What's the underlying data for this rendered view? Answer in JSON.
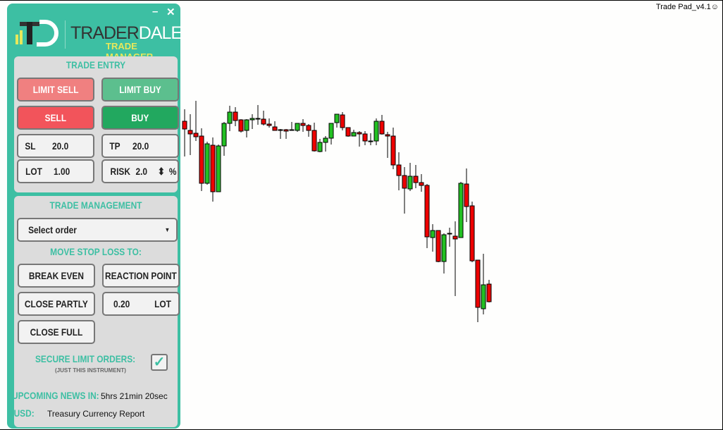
{
  "app": {
    "label": "Trade Pad_v4.1",
    "smiley": "☺"
  },
  "window": {
    "minimize": "–",
    "close": "✕"
  },
  "logo": {
    "brand_dark": "TRADER",
    "brand_light": "DALE",
    "subtitle": "TRADE MANAGER"
  },
  "trade_entry": {
    "title": "TRADE ENTRY",
    "limit_sell": "LIMIT SELL",
    "limit_buy": "LIMIT BUY",
    "sell": "SELL",
    "buy": "BUY",
    "sl_label": "SL",
    "sl_value": "20.0",
    "tp_label": "TP",
    "tp_value": "20.0",
    "lot_label": "LOT",
    "lot_value": "1.00",
    "risk_label": "RISK",
    "risk_value": "2.0",
    "risk_unit": "%",
    "spinner": "⬍"
  },
  "trade_management": {
    "title": "TRADE MANAGEMENT",
    "select_value": "Select order",
    "move_sl_title": "MOVE STOP LOSS TO:",
    "break_even": "BREAK EVEN",
    "reaction_point": "REACTION POINT",
    "close_partly": "CLOSE PARTLY",
    "partial_lot_value": "0.20",
    "partial_lot_unit": "LOT",
    "close_full": "CLOSE FULL",
    "secure_label": "SECURE LIMIT ORDERS:",
    "secure_sub": "(JUST THIS INSTRUMENT)",
    "secure_checked": true
  },
  "news": {
    "label": "UPCOMING NEWS IN:",
    "countdown": "5hrs 21min 20sec",
    "currency": "USD:",
    "event": "Treasury Currency Report"
  },
  "colors": {
    "panel": "#3dbfa3",
    "limit_sell": "#f08080",
    "limit_buy": "#5cbf8e",
    "sell": "#f2545b",
    "buy": "#22a85f",
    "bull": "#22c022",
    "bear": "#ee0000"
  },
  "chart_data": {
    "type": "candlestick",
    "candles": [
      [
        298,
        315,
        248,
        287
      ],
      [
        285,
        308,
        250,
        280
      ],
      [
        281,
        327,
        270,
        276
      ],
      [
        277,
        288,
        199,
        210
      ],
      [
        210,
        269,
        208,
        266
      ],
      [
        264,
        275,
        184,
        198
      ],
      [
        198,
        265,
        198,
        263
      ],
      [
        263,
        297,
        249,
        295
      ],
      [
        295,
        320,
        284,
        311
      ],
      [
        311,
        318,
        291,
        299
      ],
      [
        300,
        301,
        282,
        284
      ],
      [
        285,
        301,
        275,
        300
      ],
      [
        300,
        308,
        287,
        302
      ],
      [
        302,
        321,
        293,
        301
      ],
      [
        301,
        313,
        292,
        294
      ],
      [
        294,
        302,
        289,
        292
      ],
      [
        290,
        298,
        285,
        285
      ],
      [
        286,
        287,
        273,
        285
      ],
      [
        286,
        287,
        273,
        284
      ],
      [
        285,
        297,
        285,
        286
      ],
      [
        285,
        295,
        283,
        295
      ],
      [
        295,
        301,
        283,
        292
      ],
      [
        292,
        294,
        276,
        285
      ],
      [
        285,
        296,
        255,
        256
      ],
      [
        255,
        273,
        254,
        268
      ],
      [
        268,
        277,
        255,
        274
      ],
      [
        274,
        295,
        265,
        295
      ],
      [
        296,
        308,
        289,
        308
      ],
      [
        307,
        311,
        285,
        289
      ],
      [
        289,
        289,
        276,
        277
      ],
      [
        277,
        286,
        277,
        282
      ],
      [
        282,
        284,
        262,
        280
      ],
      [
        280,
        284,
        264,
        270
      ],
      [
        270,
        281,
        264,
        270
      ],
      [
        270,
        302,
        264,
        298
      ],
      [
        298,
        307,
        279,
        280
      ],
      [
        279,
        283,
        246,
        277
      ],
      [
        277,
        289,
        230,
        236
      ],
      [
        236,
        254,
        200,
        221
      ],
      [
        221,
        233,
        167,
        203
      ],
      [
        202,
        239,
        199,
        220
      ],
      [
        220,
        236,
        203,
        211
      ],
      [
        211,
        223,
        198,
        207
      ],
      [
        207,
        209,
        118,
        134
      ],
      [
        133,
        152,
        113,
        143
      ],
      [
        143,
        143,
        98,
        99
      ],
      [
        99,
        139,
        82,
        137
      ],
      [
        139,
        147,
        120,
        139
      ],
      [
        135,
        156,
        50,
        131
      ],
      [
        133,
        212,
        133,
        210
      ],
      [
        209,
        231,
        155,
        177
      ],
      [
        178,
        184,
        98,
        100
      ],
      [
        101,
        101,
        13,
        34
      ],
      [
        32,
        110,
        24,
        66
      ],
      [
        67,
        73,
        41,
        42
      ]
    ]
  }
}
